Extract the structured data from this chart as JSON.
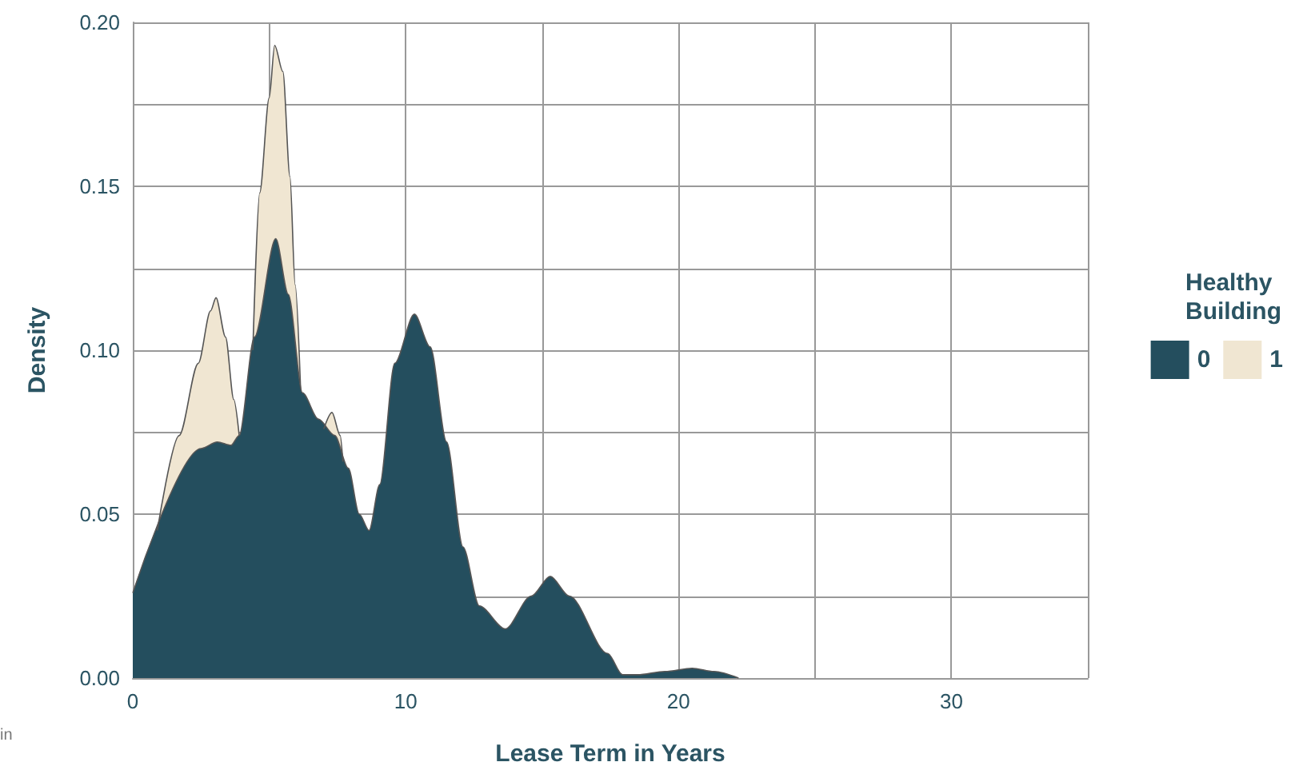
{
  "chart_data": {
    "type": "area",
    "xlabel": "Lease Term in Years",
    "ylabel": "Density",
    "legend_title": "Healthy Building",
    "legend": "right",
    "grid": true,
    "marker": "none",
    "xlim": [
      0,
      35
    ],
    "xticks": [
      0,
      {
        "value": 5,
        "label": null
      },
      10,
      {
        "value": 15,
        "label": null
      },
      20,
      {
        "value": 25,
        "label": null
      },
      30,
      {
        "value": 35,
        "label": null
      }
    ],
    "ylim": [
      0,
      0.2
    ],
    "yticks": [
      {
        "value": 0,
        "label": "0.00"
      },
      {
        "value": 0.025,
        "label": null
      },
      {
        "value": 0.05,
        "label": "0.05"
      },
      {
        "value": 0.075,
        "label": null
      },
      {
        "value": 0.1,
        "label": "0.10"
      },
      {
        "value": 0.125,
        "label": null
      },
      {
        "value": 0.15,
        "label": "0.15"
      },
      {
        "value": 0.175,
        "label": null
      },
      {
        "value": 0.2,
        "label": "0.20"
      }
    ],
    "annotations": [
      "in"
    ],
    "series": [
      {
        "name": "1",
        "color": "#f0e6d2",
        "x": [
          0.9,
          1.7,
          2.4,
          2.85,
          3.05,
          3.4,
          3.7,
          3.9,
          4.1,
          4.4,
          4.65,
          5.0,
          5.2,
          5.5,
          5.76,
          5.95,
          6.15,
          6.6,
          7.0,
          7.3,
          7.6,
          7.7
        ],
        "values": [
          0.045,
          0.074,
          0.096,
          0.112,
          0.116,
          0.104,
          0.085,
          0.074,
          null,
          0.1,
          0.148,
          0.177,
          0.193,
          0.185,
          0.153,
          0.12,
          0.088,
          null,
          0.076,
          0.081,
          0.074,
          0.066
        ]
      },
      {
        "name": "0",
        "color": "#244e5e",
        "x": [
          0,
          2.5,
          3.1,
          3.6,
          3.9,
          4.46,
          5.24,
          5.7,
          6.22,
          6.8,
          7.4,
          7.9,
          8.3,
          8.66,
          9.05,
          9.6,
          10.32,
          10.9,
          11.5,
          12.1,
          12.7,
          13.65,
          14.6,
          15.3,
          16.0,
          17.4,
          17.95,
          18.5,
          19.5,
          20.5,
          21.3,
          22.2
        ],
        "values": [
          0.026,
          0.07,
          0.072,
          0.071,
          0.074,
          0.104,
          0.134,
          0.117,
          0.087,
          0.079,
          0.074,
          0.064,
          0.05,
          0.045,
          0.059,
          0.096,
          0.111,
          0.101,
          0.072,
          0.04,
          0.022,
          0.015,
          0.025,
          0.031,
          0.025,
          0.0075,
          0.001,
          0.001,
          0.002,
          0.003,
          0.002,
          0
        ]
      }
    ]
  }
}
